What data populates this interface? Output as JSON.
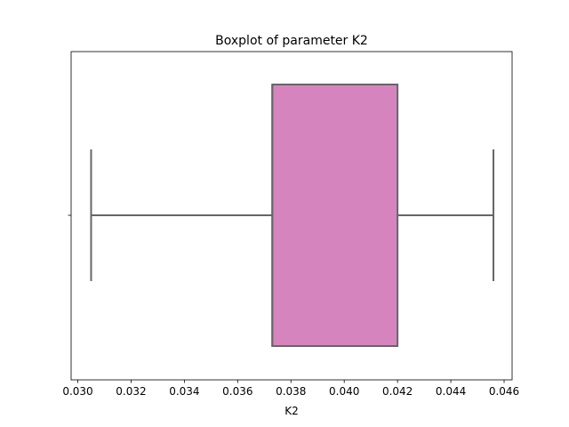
{
  "chart_data": {
    "type": "box",
    "title": "Boxplot of parameter K2",
    "xlabel": "K2",
    "ylabel": "",
    "orientation": "horizontal",
    "xlim": [
      0.02975,
      0.0463
    ],
    "xticks": [
      {
        "value": 0.03,
        "label": "0.030"
      },
      {
        "value": 0.032,
        "label": "0.032"
      },
      {
        "value": 0.034,
        "label": "0.034"
      },
      {
        "value": 0.036,
        "label": "0.036"
      },
      {
        "value": 0.038,
        "label": "0.038"
      },
      {
        "value": 0.04,
        "label": "0.040"
      },
      {
        "value": 0.042,
        "label": "0.042"
      },
      {
        "value": 0.044,
        "label": "0.044"
      },
      {
        "value": 0.046,
        "label": "0.046"
      }
    ],
    "box": {
      "whisker_low": 0.0305,
      "q1": 0.0373,
      "median": 0.0373,
      "q3": 0.042,
      "whisker_high": 0.0456
    },
    "colors": {
      "box_fill": "#d684be",
      "line": "#666666"
    },
    "grid": false,
    "legend": "none"
  }
}
